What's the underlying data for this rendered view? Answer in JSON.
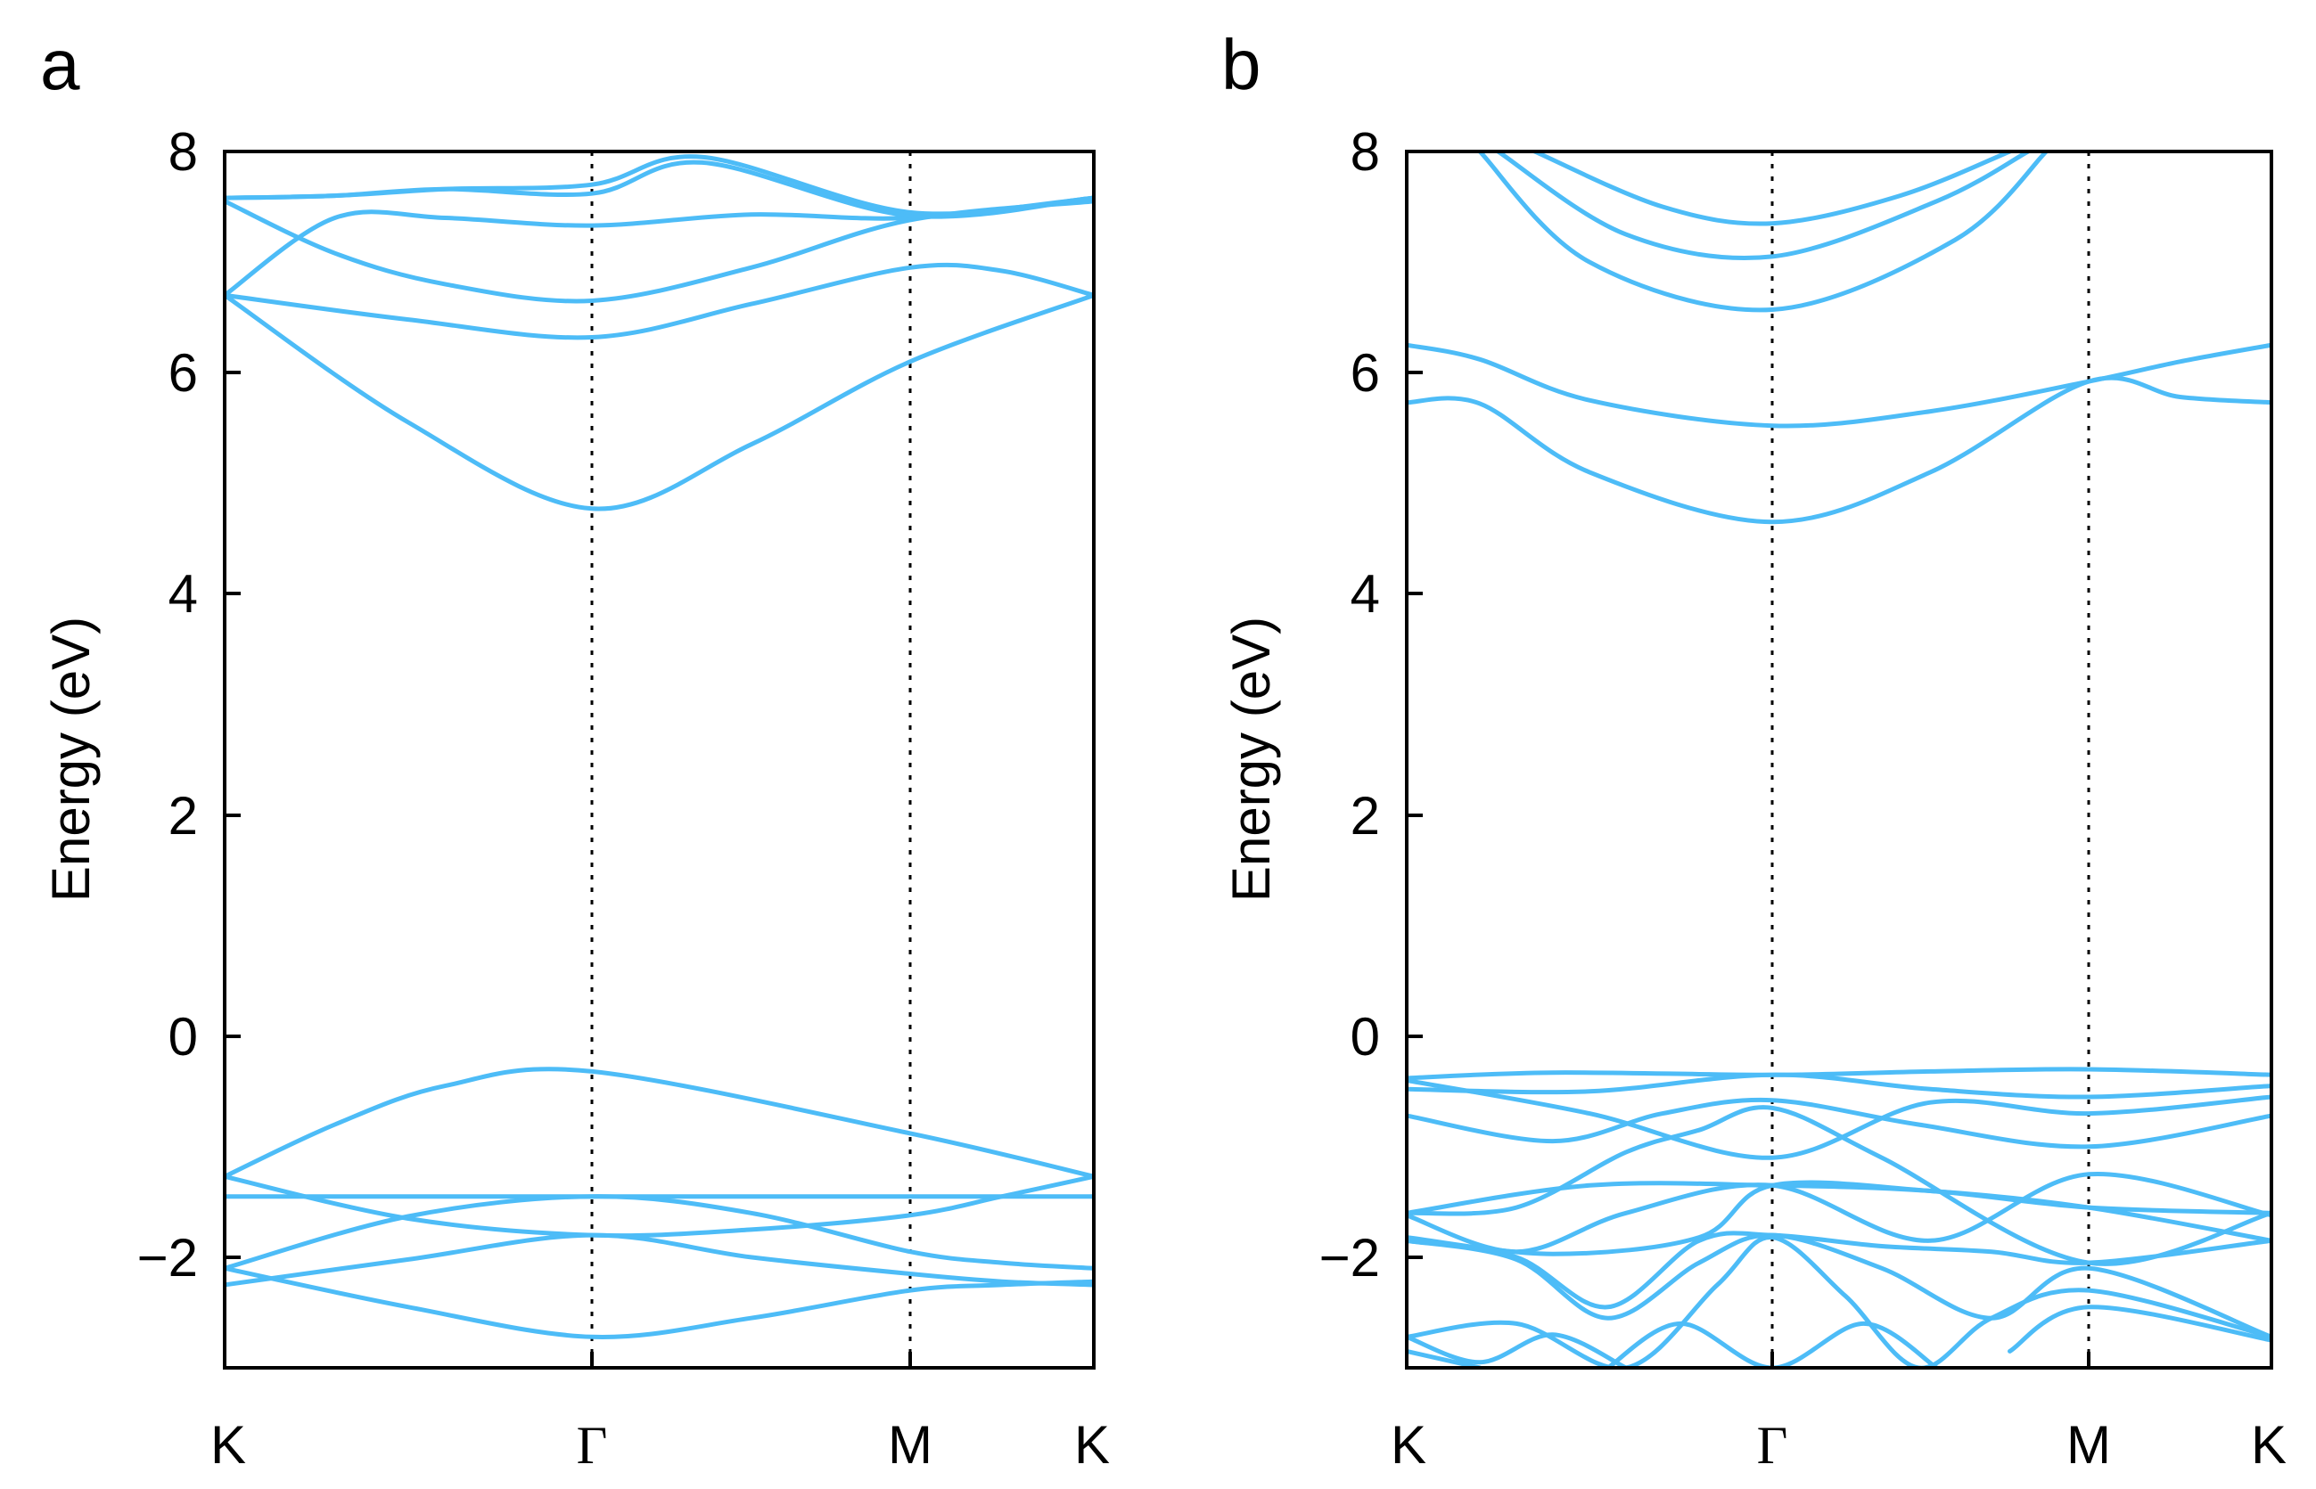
{
  "chart_data": [
    {
      "type": "line",
      "panel_label": "a",
      "ylabel": "Energy (eV)",
      "ylim": [
        -3,
        8
      ],
      "yticks": [
        -2,
        0,
        2,
        4,
        6,
        8
      ],
      "ytick_labels": [
        "−2",
        "0",
        "2",
        "4",
        "6",
        "8"
      ],
      "kpoints": [
        0,
        1,
        1.866,
        2.366
      ],
      "xtick_labels": [
        "K",
        "Γ",
        "M",
        "K"
      ],
      "vlines_at": [
        1,
        1.866
      ],
      "color": "#4dbcf7",
      "series": [
        {
          "name": "band-1",
          "x": [
            0,
            0.5,
            1,
            1.433,
            1.866,
            2.366
          ],
          "y": [
            6.7,
            5.55,
            4.77,
            5.35,
            6.1,
            6.7
          ]
        },
        {
          "name": "band-2",
          "x": [
            0,
            0.5,
            1,
            1.433,
            1.866,
            2.116,
            2.366
          ],
          "y": [
            6.7,
            6.48,
            6.32,
            6.62,
            6.95,
            6.92,
            6.7
          ]
        },
        {
          "name": "band-3",
          "x": [
            0,
            0.3,
            0.6,
            1,
            1.433,
            1.866,
            2.366
          ],
          "y": [
            7.55,
            7.08,
            6.8,
            6.65,
            6.95,
            7.38,
            7.55
          ]
        },
        {
          "name": "band-4",
          "x": [
            0,
            0.3,
            0.6,
            1,
            1.433,
            1.866,
            2.366
          ],
          "y": [
            6.7,
            7.4,
            7.4,
            7.33,
            7.43,
            7.4,
            7.58
          ]
        },
        {
          "name": "band-5",
          "x": [
            0,
            0.3,
            0.6,
            1,
            1.3,
            1.866,
            2.366
          ],
          "y": [
            7.58,
            7.6,
            7.66,
            7.62,
            7.9,
            7.42,
            7.58
          ]
        },
        {
          "name": "band-6",
          "x": [
            0,
            0.3,
            0.6,
            1,
            1.3,
            1.866,
            2.366
          ],
          "y": [
            7.58,
            7.6,
            7.66,
            7.7,
            7.95,
            7.45,
            7.58
          ]
        },
        {
          "name": "band-7",
          "x": [
            0,
            0.3,
            0.6,
            1,
            1.866,
            2.366
          ],
          "y": [
            -1.27,
            -0.8,
            -0.45,
            -0.32,
            -0.88,
            -1.27
          ]
        },
        {
          "name": "band-8",
          "x": [
            0,
            1,
            1.866,
            2.366
          ],
          "y": [
            -1.45,
            -1.45,
            -1.45,
            -1.45
          ]
        },
        {
          "name": "band-9",
          "x": [
            0,
            0.5,
            1,
            1.433,
            1.866,
            2.116,
            2.366
          ],
          "y": [
            -1.27,
            -1.65,
            -1.8,
            -1.75,
            -1.62,
            -1.45,
            -1.27
          ]
        },
        {
          "name": "band-10",
          "x": [
            0,
            0.5,
            1,
            1.433,
            1.866,
            2.116,
            2.366
          ],
          "y": [
            -2.1,
            -1.63,
            -1.45,
            -1.6,
            -1.95,
            -2.05,
            -2.1
          ]
        },
        {
          "name": "band-11",
          "x": [
            0,
            0.5,
            1,
            1.433,
            1.866,
            2.116,
            2.366
          ],
          "y": [
            -2.25,
            -2.02,
            -1.8,
            -2.0,
            -2.15,
            -2.22,
            -2.25
          ]
        },
        {
          "name": "band-12",
          "x": [
            0,
            0.5,
            1,
            1.433,
            1.866,
            2.116,
            2.366
          ],
          "y": [
            -2.1,
            -2.45,
            -2.72,
            -2.55,
            -2.3,
            -2.25,
            -2.22
          ]
        }
      ]
    },
    {
      "type": "line",
      "panel_label": "b",
      "ylabel": "Energy (eV)",
      "ylim": [
        -3,
        8
      ],
      "yticks": [
        -2,
        0,
        2,
        4,
        6,
        8
      ],
      "ytick_labels": [
        "−2",
        "0",
        "2",
        "4",
        "6",
        "8"
      ],
      "kpoints": [
        0,
        1,
        1.866,
        2.366
      ],
      "xtick_labels": [
        "K",
        "Γ",
        "M",
        "K"
      ],
      "vlines_at": [
        1,
        1.866
      ],
      "color": "#4dbcf7",
      "series": [
        {
          "name": "band-1",
          "x": [
            0,
            0.2,
            0.5,
            1,
            1.433,
            1.866,
            2.116,
            2.366
          ],
          "y": [
            5.73,
            5.72,
            5.1,
            4.65,
            5.1,
            5.92,
            5.78,
            5.73
          ]
        },
        {
          "name": "band-2",
          "x": [
            0,
            0.2,
            0.5,
            1,
            1.433,
            1.866,
            2.116,
            2.366
          ],
          "y": [
            6.25,
            6.12,
            5.75,
            5.52,
            5.65,
            5.92,
            6.1,
            6.25
          ]
        },
        {
          "name": "band-3",
          "x": [
            0.2,
            0.5,
            1,
            1.5,
            1.75
          ],
          "y": [
            8.0,
            7.0,
            6.57,
            7.2,
            8.0
          ]
        },
        {
          "name": "band-4",
          "x": [
            0.25,
            0.6,
            1,
            1.45,
            1.7
          ],
          "y": [
            8.0,
            7.25,
            7.05,
            7.55,
            8.0
          ]
        },
        {
          "name": "band-5",
          "x": [
            0.35,
            0.7,
            1,
            1.35,
            1.65
          ],
          "y": [
            8.0,
            7.5,
            7.35,
            7.6,
            8.0
          ]
        },
        {
          "name": "band-6",
          "x": [
            0,
            0.4,
            1,
            1.433,
            1.866,
            2.366
          ],
          "y": [
            -0.38,
            -0.33,
            -0.35,
            -0.32,
            -0.3,
            -0.35
          ]
        },
        {
          "name": "band-7",
          "x": [
            0,
            0.5,
            1,
            1.433,
            1.866,
            2.366
          ],
          "y": [
            -0.48,
            -0.5,
            -0.35,
            -0.48,
            -0.55,
            -0.45
          ]
        },
        {
          "name": "band-8",
          "x": [
            0,
            0.5,
            1,
            1.433,
            1.866,
            2.366
          ],
          "y": [
            -0.4,
            -0.7,
            -1.1,
            -0.6,
            -0.7,
            -0.55
          ]
        },
        {
          "name": "band-9",
          "x": [
            0,
            0.4,
            0.7,
            1,
            1.4,
            1.866,
            2.366
          ],
          "y": [
            -0.72,
            -0.95,
            -0.7,
            -0.58,
            -0.8,
            -1.0,
            -0.72
          ]
        },
        {
          "name": "band-10",
          "x": [
            0,
            0.3,
            0.6,
            0.8,
            1,
            1.3,
            1.866,
            2.366
          ],
          "y": [
            -1.6,
            -1.55,
            -1.05,
            -0.85,
            -0.65,
            -1.1,
            -2.05,
            -1.6
          ]
        },
        {
          "name": "band-11",
          "x": [
            0,
            0.5,
            1,
            1.433,
            1.866,
            2.366
          ],
          "y": [
            -1.6,
            -1.35,
            -1.35,
            -1.4,
            -1.55,
            -1.6
          ]
        },
        {
          "name": "band-12",
          "x": [
            0,
            0.3,
            0.6,
            1,
            1.433,
            1.866,
            2.366
          ],
          "y": [
            -1.62,
            -1.95,
            -1.6,
            -1.35,
            -1.85,
            -1.25,
            -1.62
          ]
        },
        {
          "name": "band-13",
          "x": [
            0,
            0.4,
            0.8,
            1,
            1.433,
            1.866,
            2.366
          ],
          "y": [
            -1.82,
            -1.97,
            -1.82,
            -1.35,
            -1.4,
            -1.55,
            -1.85
          ]
        },
        {
          "name": "band-14",
          "x": [
            0,
            0.3,
            0.55,
            0.8,
            1,
            1.3,
            1.6,
            1.866,
            2.366
          ],
          "y": [
            -1.85,
            -2.0,
            -2.45,
            -1.85,
            -1.8,
            -1.9,
            -1.95,
            -2.05,
            -1.85
          ]
        },
        {
          "name": "band-15",
          "x": [
            0,
            0.3,
            0.55,
            0.8,
            1,
            1.3,
            1.6,
            1.866,
            2.366
          ],
          "y": [
            -1.85,
            -2.02,
            -2.55,
            -2.05,
            -1.8,
            -2.1,
            -2.55,
            -2.1,
            -2.72
          ]
        },
        {
          "name": "band-16",
          "x": [
            0,
            0.3,
            0.6,
            0.85,
            1,
            1.2,
            1.4,
            1.6,
            1.866,
            2.366
          ],
          "y": [
            -2.72,
            -2.6,
            -3.0,
            -2.25,
            -1.82,
            -2.35,
            -3.0,
            -2.55,
            -2.3,
            -2.72
          ]
        },
        {
          "name": "band-17",
          "x": [
            0,
            0.2,
            0.4,
            0.6
          ],
          "y": [
            -2.72,
            -2.95,
            -2.7,
            -3.0
          ]
        },
        {
          "name": "band-18",
          "x": [
            0.55,
            0.75,
            1,
            1.25,
            1.45
          ],
          "y": [
            -3.0,
            -2.6,
            -3.0,
            -2.6,
            -3.0
          ]
        },
        {
          "name": "band-19",
          "x": [
            0,
            0.2
          ],
          "y": [
            -2.85,
            -3.0
          ]
        },
        {
          "name": "band-20",
          "x": [
            1.65,
            1.866,
            2.366
          ],
          "y": [
            -2.85,
            -2.45,
            -2.75
          ]
        }
      ]
    }
  ]
}
